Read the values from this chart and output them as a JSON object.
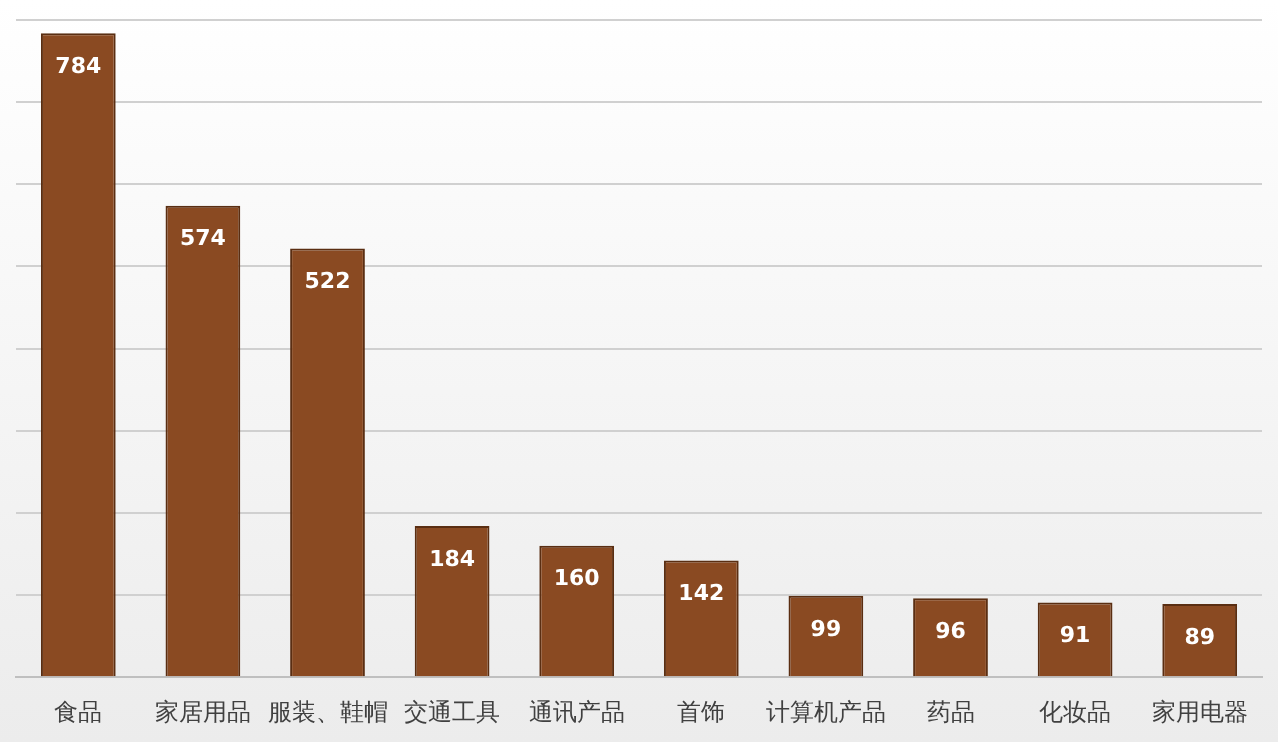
{
  "chart_data": {
    "type": "bar",
    "categories": [
      "食品",
      "家居用品",
      "服装、鞋帽",
      "交通工具",
      "通讯产品",
      "首饰",
      "计算机产品",
      "药品",
      "化妆品",
      "家用电器"
    ],
    "values": [
      784,
      574,
      522,
      184,
      160,
      142,
      99,
      96,
      91,
      89
    ],
    "color": "#8a4a22",
    "ylim": [
      0,
      800
    ],
    "yticks": [
      {
        "value": 0,
        "label": null
      },
      {
        "value": 100,
        "label": null
      },
      {
        "value": 200,
        "label": null
      },
      {
        "value": 300,
        "label": null
      },
      {
        "value": 400,
        "label": null
      },
      {
        "value": 500,
        "label": null
      },
      {
        "value": 600,
        "label": null
      },
      {
        "value": 700,
        "label": null
      },
      {
        "value": 800,
        "label": null
      }
    ],
    "grid": "y",
    "tick_labels": "x",
    "data_labels": true
  }
}
